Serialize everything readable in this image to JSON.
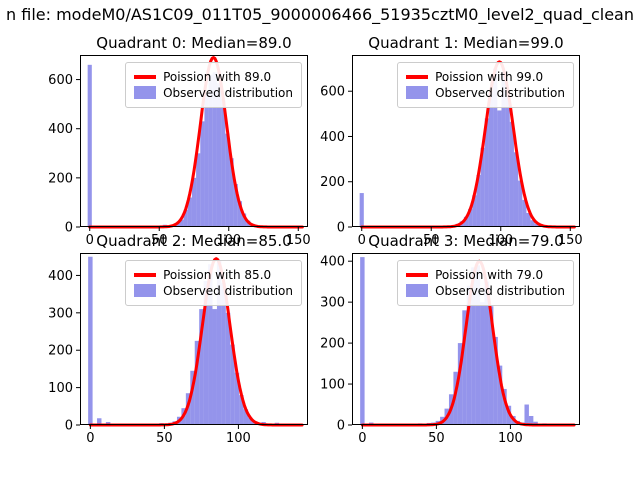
{
  "figure": {
    "title": "n file: modeM0/AS1C09_011T05_9000006466_51935cztM0_level2_quad_clean",
    "background": "#ffffff",
    "bar_color": "#5a5ae0",
    "bar_opacity": 0.65,
    "curve_color": "#ff0000",
    "spine_color": "#000000"
  },
  "chart_data": [
    {
      "type": "histogram+line",
      "title": "Quadrant 0: Median=89.0",
      "legend": [
        "Poission with 89.0",
        "Observed distribution"
      ],
      "legend_position": "upper right",
      "grid": false,
      "xlim": [
        -7,
        157
      ],
      "ylim": [
        0,
        700
      ],
      "xticks": [
        0,
        50,
        100,
        150
      ],
      "yticks": [
        0,
        200,
        400,
        600
      ],
      "bin_width": 3,
      "bars": [
        [
          0,
          660
        ],
        [
          33,
          3
        ],
        [
          39,
          4
        ],
        [
          45,
          3
        ],
        [
          51,
          6
        ],
        [
          54,
          9
        ],
        [
          57,
          5
        ],
        [
          60,
          10
        ],
        [
          63,
          16
        ],
        [
          66,
          30
        ],
        [
          69,
          70
        ],
        [
          72,
          120
        ],
        [
          75,
          200
        ],
        [
          78,
          300
        ],
        [
          81,
          430
        ],
        [
          84,
          540
        ],
        [
          87,
          620
        ],
        [
          90,
          630
        ],
        [
          93,
          585
        ],
        [
          96,
          520
        ],
        [
          99,
          380
        ],
        [
          102,
          280
        ],
        [
          105,
          175
        ],
        [
          108,
          105
        ],
        [
          111,
          55
        ],
        [
          114,
          26
        ],
        [
          117,
          13
        ],
        [
          120,
          7
        ],
        [
          123,
          4
        ],
        [
          129,
          3
        ],
        [
          135,
          2
        ],
        [
          141,
          3
        ],
        [
          147,
          2
        ]
      ],
      "curve": {
        "shape": "poisson-gaussian",
        "mu": 89.0,
        "sigma": 9.43,
        "peak": 690
      }
    },
    {
      "type": "histogram+line",
      "title": "Quadrant 1: Median=99.0",
      "legend": [
        "Poission with 99.0",
        "Observed distribution"
      ],
      "legend_position": "upper right",
      "grid": false,
      "xlim": [
        -7,
        157
      ],
      "ylim": [
        0,
        760
      ],
      "xticks": [
        0,
        50,
        100,
        150
      ],
      "yticks": [
        0,
        200,
        400,
        600
      ],
      "bin_width": 3,
      "bars": [
        [
          0,
          150
        ],
        [
          30,
          2
        ],
        [
          39,
          3
        ],
        [
          48,
          4
        ],
        [
          57,
          3
        ],
        [
          63,
          5
        ],
        [
          66,
          8
        ],
        [
          69,
          14
        ],
        [
          72,
          25
        ],
        [
          75,
          45
        ],
        [
          78,
          80
        ],
        [
          81,
          140
        ],
        [
          84,
          230
        ],
        [
          87,
          350
        ],
        [
          90,
          480
        ],
        [
          93,
          600
        ],
        [
          96,
          700
        ],
        [
          99,
          515
        ],
        [
          102,
          685
        ],
        [
          105,
          595
        ],
        [
          108,
          465
        ],
        [
          111,
          330
        ],
        [
          114,
          205
        ],
        [
          117,
          120
        ],
        [
          120,
          62
        ],
        [
          123,
          30
        ],
        [
          126,
          14
        ],
        [
          129,
          6
        ],
        [
          132,
          3
        ],
        [
          138,
          2
        ],
        [
          144,
          2
        ],
        [
          150,
          2
        ]
      ],
      "curve": {
        "shape": "poisson-gaussian",
        "mu": 99.0,
        "sigma": 9.95,
        "peak": 730
      }
    },
    {
      "type": "histogram+line",
      "title": "Quadrant 2: Median=85.0",
      "legend": [
        "Poission with 85.0",
        "Observed distribution"
      ],
      "legend_position": "upper right",
      "grid": false,
      "xlim": [
        -7,
        147
      ],
      "ylim": [
        0,
        460
      ],
      "xticks": [
        0,
        50,
        100
      ],
      "yticks": [
        0,
        100,
        200,
        300,
        400
      ],
      "bin_width": 3,
      "bars": [
        [
          0,
          450
        ],
        [
          6,
          18
        ],
        [
          12,
          8
        ],
        [
          18,
          4
        ],
        [
          30,
          3
        ],
        [
          42,
          4
        ],
        [
          48,
          5
        ],
        [
          54,
          6
        ],
        [
          57,
          10
        ],
        [
          60,
          22
        ],
        [
          63,
          45
        ],
        [
          66,
          85
        ],
        [
          69,
          145
        ],
        [
          72,
          225
        ],
        [
          75,
          310
        ],
        [
          78,
          385
        ],
        [
          81,
          430
        ],
        [
          84,
          310
        ],
        [
          87,
          440
        ],
        [
          90,
          380
        ],
        [
          93,
          300
        ],
        [
          96,
          215
        ],
        [
          99,
          140
        ],
        [
          102,
          80
        ],
        [
          105,
          42
        ],
        [
          108,
          20
        ],
        [
          111,
          9
        ],
        [
          114,
          5
        ],
        [
          117,
          8
        ],
        [
          120,
          4
        ],
        [
          126,
          6
        ],
        [
          132,
          3
        ],
        [
          138,
          2
        ]
      ],
      "curve": {
        "shape": "poisson-gaussian",
        "mu": 85.0,
        "sigma": 9.22,
        "peak": 445
      }
    },
    {
      "type": "histogram+line",
      "title": "Quadrant 3: Median=79.0",
      "legend": [
        "Poission with 79.0",
        "Observed distribution"
      ],
      "legend_position": "upper right",
      "grid": false,
      "xlim": [
        -7,
        147
      ],
      "ylim": [
        0,
        420
      ],
      "xticks": [
        0,
        50,
        100
      ],
      "yticks": [
        0,
        100,
        200,
        300,
        400
      ],
      "bin_width": 3,
      "bars": [
        [
          0,
          410
        ],
        [
          6,
          6
        ],
        [
          15,
          3
        ],
        [
          27,
          3
        ],
        [
          39,
          4
        ],
        [
          45,
          5
        ],
        [
          48,
          6
        ],
        [
          51,
          10
        ],
        [
          54,
          20
        ],
        [
          57,
          40
        ],
        [
          60,
          75
        ],
        [
          63,
          130
        ],
        [
          66,
          200
        ],
        [
          69,
          280
        ],
        [
          72,
          340
        ],
        [
          75,
          385
        ],
        [
          78,
          390
        ],
        [
          81,
          300
        ],
        [
          84,
          350
        ],
        [
          87,
          290
        ],
        [
          90,
          215
        ],
        [
          93,
          145
        ],
        [
          96,
          88
        ],
        [
          99,
          47
        ],
        [
          102,
          22
        ],
        [
          105,
          10
        ],
        [
          108,
          6
        ],
        [
          111,
          50
        ],
        [
          114,
          22
        ],
        [
          117,
          8
        ],
        [
          123,
          4
        ],
        [
          129,
          3
        ],
        [
          135,
          2
        ]
      ],
      "curve": {
        "shape": "poisson-gaussian",
        "mu": 79.0,
        "sigma": 8.89,
        "peak": 400
      }
    }
  ]
}
